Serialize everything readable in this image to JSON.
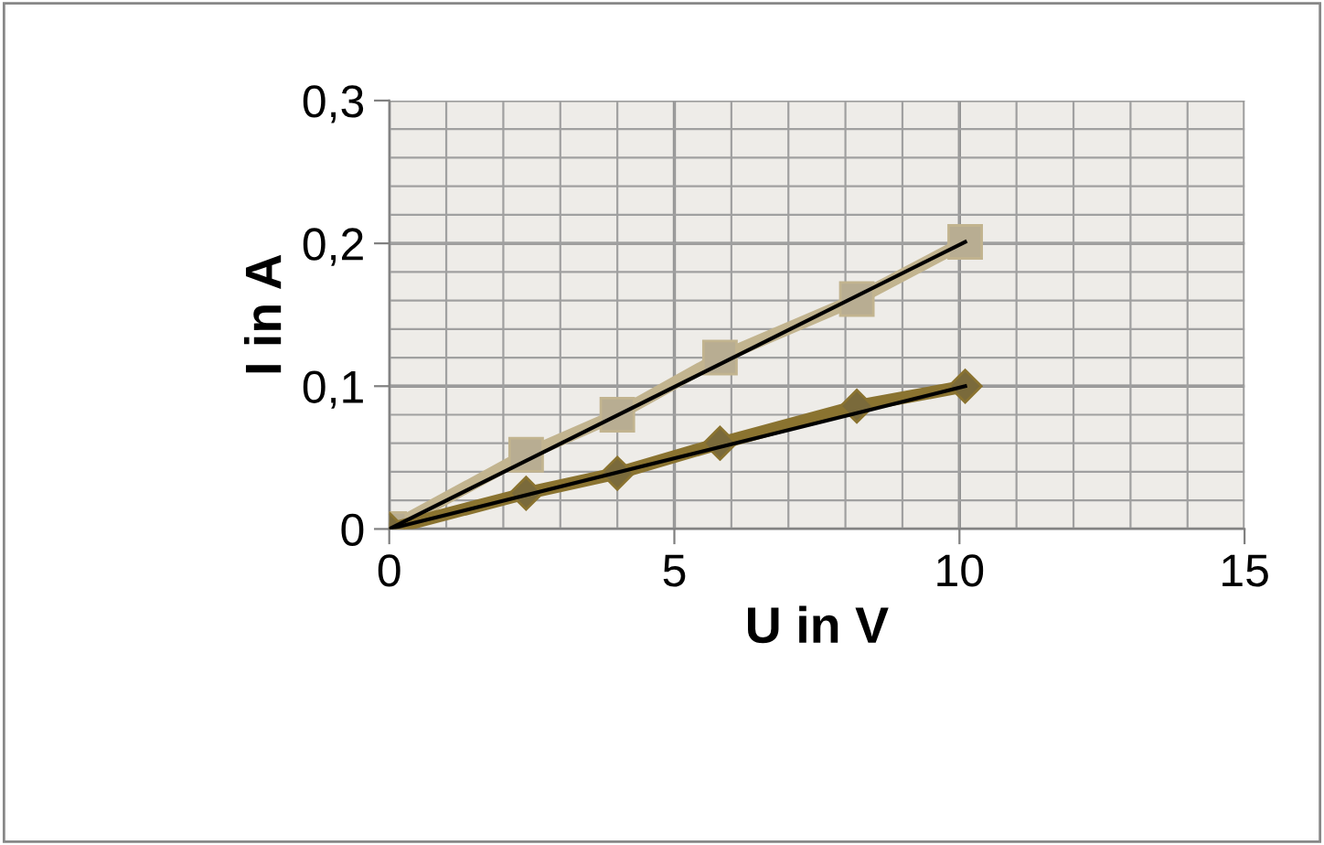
{
  "chart_data": {
    "type": "line",
    "xlabel": "U in V",
    "ylabel": "I in A",
    "xlim": [
      0,
      15
    ],
    "xticks": [
      0,
      5,
      10,
      15
    ],
    "ylim": [
      0,
      0.3
    ],
    "yticks": [
      {
        "value": 0,
        "label": "0"
      },
      {
        "value": 0.1,
        "label": "0,1"
      },
      {
        "value": 0.2,
        "label": "0,2"
      },
      {
        "value": 0.3,
        "label": "0,3"
      }
    ],
    "grid": true,
    "legend": false,
    "series": [
      {
        "x": [
          0,
          2.4,
          4.0,
          5.8,
          8.2,
          10.1
        ],
        "values": [
          0,
          0.052,
          0.08,
          0.12,
          0.161,
          0.201
        ],
        "color": "#c2b48f",
        "marker": "square"
      },
      {
        "x": [
          0,
          2.4,
          4.0,
          5.8,
          8.2,
          10.1
        ],
        "values": [
          0,
          0.025,
          0.039,
          0.06,
          0.086,
          0.1
        ],
        "color": "#8a7330",
        "marker": "diamond"
      },
      {
        "x": [
          0,
          10.1
        ],
        "values": [
          0,
          0.201
        ],
        "color": "#000000",
        "marker": "none"
      },
      {
        "x": [
          0,
          10.1
        ],
        "values": [
          0,
          0.1
        ],
        "color": "#000000",
        "marker": "none"
      }
    ]
  }
}
